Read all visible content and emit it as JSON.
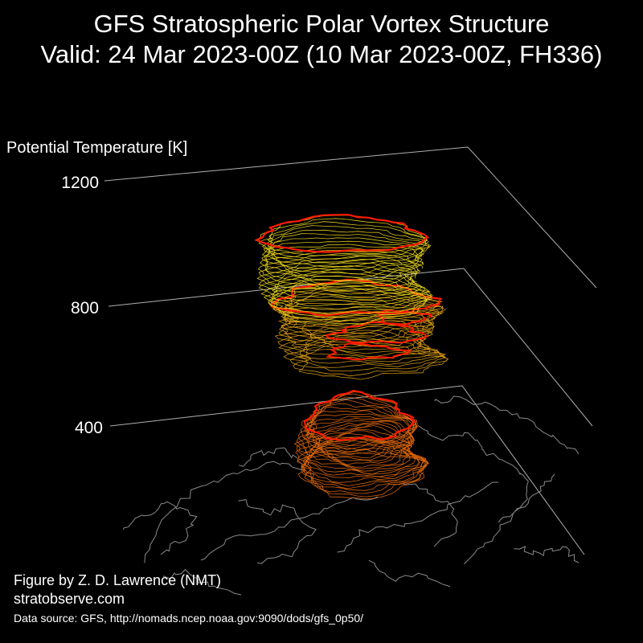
{
  "title": {
    "line1": "GFS Stratospheric Polar Vortex Structure",
    "line2": "Valid: 24 Mar 2023-00Z  (10 Mar 2023-00Z, FH336)"
  },
  "credit": {
    "author": "Figure by Z. D. Lawrence (NMT)",
    "site": "stratobserve.com",
    "source": "Data source: GFS, http://nomads.ncep.noaa.gov:9090/dods/gfs_0p50/"
  },
  "colors": {
    "background": "#000000",
    "text": "#ffffff",
    "gridline": "#b0b0b0",
    "coastline": "#8a8a8a",
    "edge_contour": "#ff1a00",
    "upper_contours": "#f2dc1a",
    "mid_contours": "#e0a012",
    "lower_contours": "#e66a0a"
  },
  "chart_data": {
    "type": "3d isosurface",
    "zlabel": "Potential Temperature [K]",
    "zticks": [
      "1200",
      "800",
      "400"
    ],
    "zticks_values": [
      1200,
      800,
      400
    ],
    "zlim": [
      300,
      1200
    ],
    "vortex_segments": [
      {
        "name": "upper",
        "theta_range": [
          850,
          1200
        ],
        "color": "#f2dc1a"
      },
      {
        "name": "middle",
        "theta_range": [
          600,
          850
        ],
        "color": "#e0a012"
      },
      {
        "name": "lower",
        "theta_range": [
          350,
          480
        ],
        "color": "#e66a0a"
      }
    ],
    "grid": true
  }
}
